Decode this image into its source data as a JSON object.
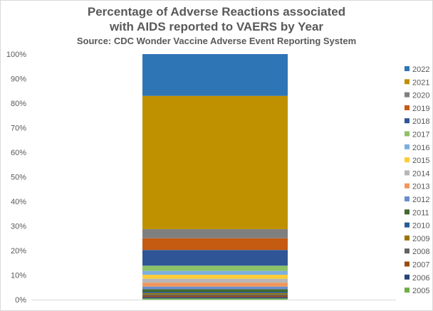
{
  "chart_data": {
    "type": "bar",
    "stacked": true,
    "percent_stacked": true,
    "title": "Percentage of Adverse Reactions associated",
    "title_line2": "with AIDS reported to VAERS by Year",
    "subtitle": "Source: CDC Wonder Vaccine Adverse Event Reporting System",
    "xlabel": "",
    "ylabel": "",
    "ylim": [
      0,
      100
    ],
    "yticks": [
      "0%",
      "10%",
      "20%",
      "30%",
      "40%",
      "50%",
      "60%",
      "70%",
      "80%",
      "90%",
      "100%"
    ],
    "grid": false,
    "legend_position": "right",
    "categories": [
      ""
    ],
    "series": [
      {
        "name": "2005",
        "values": [
          0.5
        ],
        "color": "#70ad47"
      },
      {
        "name": "2006",
        "values": [
          0.5
        ],
        "color": "#264478"
      },
      {
        "name": "2007",
        "values": [
          0.5
        ],
        "color": "#9e480e"
      },
      {
        "name": "2008",
        "values": [
          0.5
        ],
        "color": "#636363"
      },
      {
        "name": "2009",
        "values": [
          0.5
        ],
        "color": "#997300"
      },
      {
        "name": "2010",
        "values": [
          0.5
        ],
        "color": "#255e91"
      },
      {
        "name": "2011",
        "values": [
          1.0
        ],
        "color": "#43682b"
      },
      {
        "name": "2012",
        "values": [
          1.0
        ],
        "color": "#698ed0"
      },
      {
        "name": "2013",
        "values": [
          1.5
        ],
        "color": "#f1975a"
      },
      {
        "name": "2014",
        "values": [
          1.5
        ],
        "color": "#b7b7b7"
      },
      {
        "name": "2015",
        "values": [
          1.5
        ],
        "color": "#ffcd33"
      },
      {
        "name": "2016",
        "values": [
          1.5
        ],
        "color": "#7cafdd"
      },
      {
        "name": "2017",
        "values": [
          2.0
        ],
        "color": "#8cc168"
      },
      {
        "name": "2018",
        "values": [
          6.0
        ],
        "color": "#2f5597"
      },
      {
        "name": "2019",
        "values": [
          4.5
        ],
        "color": "#c55a11"
      },
      {
        "name": "2020",
        "values": [
          3.5
        ],
        "color": "#7f7f7f"
      },
      {
        "name": "2021",
        "values": [
          51.0
        ],
        "color": "#bf9000"
      },
      {
        "name": "2022",
        "values": [
          16.0
        ],
        "color": "#2e75b6"
      }
    ]
  }
}
